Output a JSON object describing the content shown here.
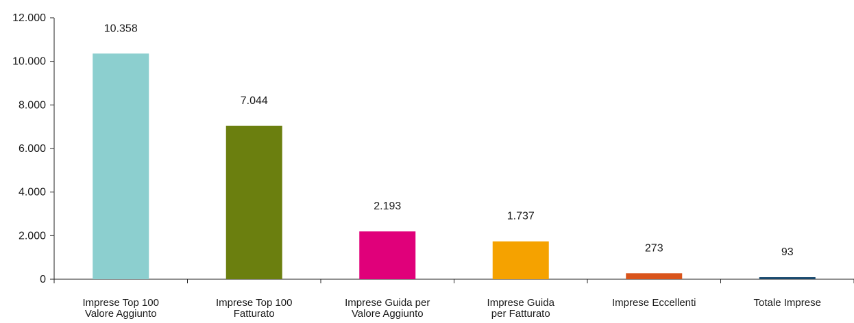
{
  "chart_data": {
    "type": "bar",
    "title": "",
    "xlabel": "",
    "ylabel": "",
    "ylim": [
      0,
      12000
    ],
    "yticks": [
      0,
      2000,
      4000,
      6000,
      8000,
      10000,
      12000
    ],
    "ytick_labels": [
      "0",
      "2.000",
      "4.000",
      "6.000",
      "8.000",
      "10.000",
      "12.000"
    ],
    "categories": [
      [
        "Imprese Top 100",
        "Valore Aggiunto"
      ],
      [
        "Imprese Top 100",
        "Fatturato"
      ],
      [
        "Imprese Guida per",
        "Valore Aggiunto"
      ],
      [
        "Imprese Guida",
        "per Fatturato"
      ],
      [
        "Imprese Eccellenti"
      ],
      [
        "Totale Imprese"
      ]
    ],
    "values": [
      10358,
      7044,
      2193,
      1737,
      273,
      93
    ],
    "value_labels": [
      "10.358",
      "7.044",
      "2.193",
      "1.737",
      "273",
      "93"
    ],
    "colors": [
      "#8ccfcf",
      "#6b7f0f",
      "#e0007a",
      "#f5a200",
      "#d9541b",
      "#1a4a6e"
    ],
    "grid": false,
    "legend": "none"
  }
}
